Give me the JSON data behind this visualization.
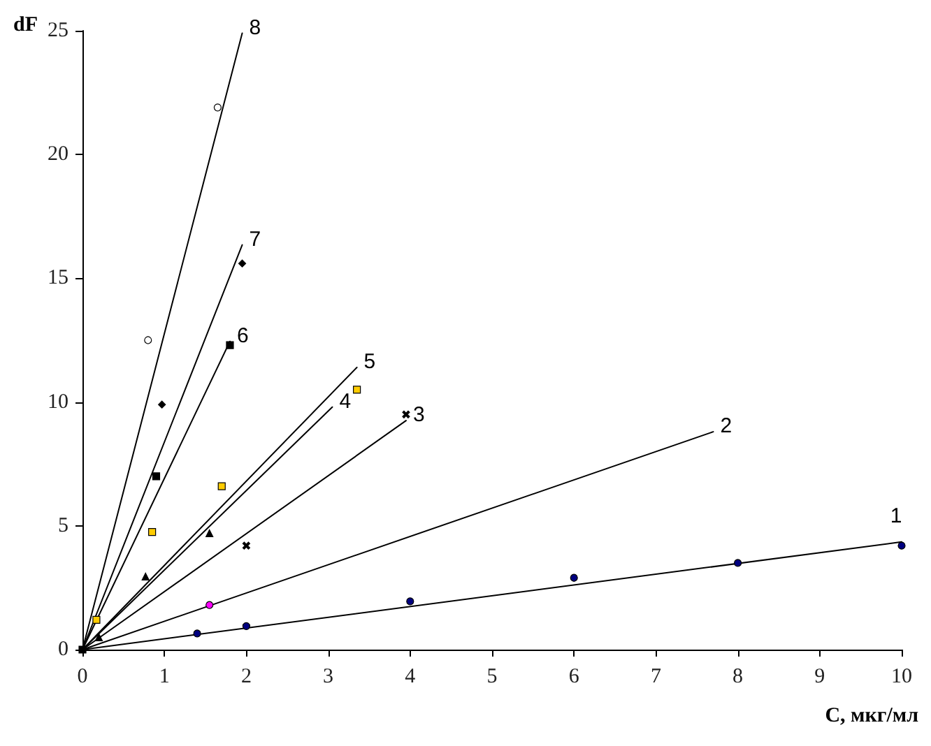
{
  "chart_data": {
    "type": "scatter",
    "xlabel": "C, мкг/мл",
    "ylabel": "dF",
    "xlim": [
      0,
      10
    ],
    "ylim": [
      0,
      25
    ],
    "xticks": [
      0,
      1,
      2,
      3,
      4,
      5,
      6,
      7,
      8,
      9,
      10
    ],
    "yticks": [
      0,
      5,
      10,
      15,
      20,
      25
    ],
    "grid": false,
    "legend": false,
    "series": [
      {
        "type": "scatter",
        "color": "#000080",
        "marker": "circle",
        "x": [
          1.4,
          2,
          4,
          6,
          8,
          10
        ],
        "values": [
          0.65,
          0.95,
          1.95,
          2.9,
          3.5,
          4.2
        ]
      },
      {
        "type": "line",
        "name": "1",
        "color": "#000000",
        "marker": "none",
        "x": [
          0,
          10
        ],
        "values": [
          0,
          4.35
        ]
      },
      {
        "type": "scatter",
        "color": "#ff00ff",
        "marker": "circle",
        "x": [
          1.55
        ],
        "values": [
          1.8
        ]
      },
      {
        "type": "line",
        "name": "2",
        "color": "#000000",
        "marker": "none",
        "x": [
          0,
          7.7
        ],
        "values": [
          0,
          8.8
        ]
      },
      {
        "type": "scatter",
        "color": "#000000",
        "marker": "cross",
        "x": [
          2,
          3.95
        ],
        "values": [
          4.2,
          9.5
        ]
      },
      {
        "type": "line",
        "name": "3",
        "color": "#000000",
        "marker": "none",
        "x": [
          0,
          3.95
        ],
        "values": [
          0,
          9.25
        ]
      },
      {
        "type": "scatter",
        "color": "#000000",
        "marker": "triangle",
        "x": [
          0.2,
          0.77,
          1.55
        ],
        "values": [
          0.5,
          2.95,
          4.7
        ]
      },
      {
        "type": "line",
        "name": "4",
        "color": "#000000",
        "marker": "none",
        "x": [
          0,
          3.05
        ],
        "values": [
          0,
          9.8
        ]
      },
      {
        "type": "scatter",
        "color": "#ffcc00",
        "marker": "square",
        "x": [
          0.17,
          0.85,
          1.7,
          3.35
        ],
        "values": [
          1.2,
          4.75,
          6.6,
          10.5
        ]
      },
      {
        "type": "line",
        "name": "5",
        "color": "#000000",
        "marker": "none",
        "x": [
          0,
          3.35
        ],
        "values": [
          0,
          11.4
        ]
      },
      {
        "type": "scatter",
        "color": "#000000",
        "marker": "square",
        "x": [
          0,
          0.9,
          1.8
        ],
        "values": [
          0,
          7,
          12.3
        ]
      },
      {
        "type": "line",
        "name": "6",
        "color": "#000000",
        "marker": "none",
        "x": [
          0,
          1.8
        ],
        "values": [
          0,
          12.45
        ]
      },
      {
        "type": "scatter",
        "color": "#000000",
        "marker": "diamond",
        "x": [
          0.97,
          1.95
        ],
        "values": [
          9.9,
          15.6
        ]
      },
      {
        "type": "line",
        "name": "7",
        "color": "#000000",
        "marker": "none",
        "x": [
          0,
          1.95
        ],
        "values": [
          0,
          16.35
        ]
      },
      {
        "type": "scatter",
        "color": "#ffffff",
        "marker": "circle",
        "x": [
          0.8,
          1.65
        ],
        "values": [
          12.5,
          21.9
        ]
      },
      {
        "type": "line",
        "name": "8",
        "color": "#000000",
        "marker": "none",
        "x": [
          0,
          1.95
        ],
        "values": [
          0,
          24.9
        ]
      }
    ]
  }
}
